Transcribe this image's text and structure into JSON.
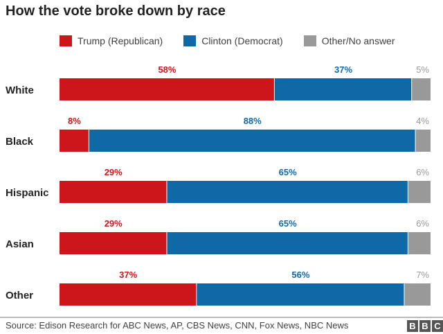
{
  "chart_data": {
    "type": "bar",
    "orientation": "horizontal",
    "stacked": true,
    "title": "How the vote broke down by race",
    "categories": [
      "White",
      "Black",
      "Hispanic",
      "Asian",
      "Other"
    ],
    "series": [
      {
        "name": "Trump (Republican)",
        "color": "#cc161c",
        "values": [
          58,
          8,
          29,
          29,
          37
        ],
        "labels": [
          "58%",
          "8%",
          "29%",
          "29%",
          "37%"
        ]
      },
      {
        "name": "Clinton (Democrat)",
        "color": "#0e69a6",
        "values": [
          37,
          88,
          65,
          65,
          56
        ],
        "labels": [
          "37%",
          "88%",
          "65%",
          "65%",
          "56%"
        ]
      },
      {
        "name": "Other/No answer",
        "color": "#999999",
        "values": [
          5,
          4,
          6,
          6,
          7
        ],
        "labels": [
          "5%",
          "4%",
          "6%",
          "6%",
          "7%"
        ]
      }
    ],
    "xlim": [
      0,
      100
    ],
    "grid": false,
    "legend_position": "top"
  },
  "footer": {
    "source": "Source: Edison Research for ABC News, AP, CBS News, CNN, Fox News, NBC News",
    "logo": [
      "B",
      "B",
      "C"
    ]
  }
}
